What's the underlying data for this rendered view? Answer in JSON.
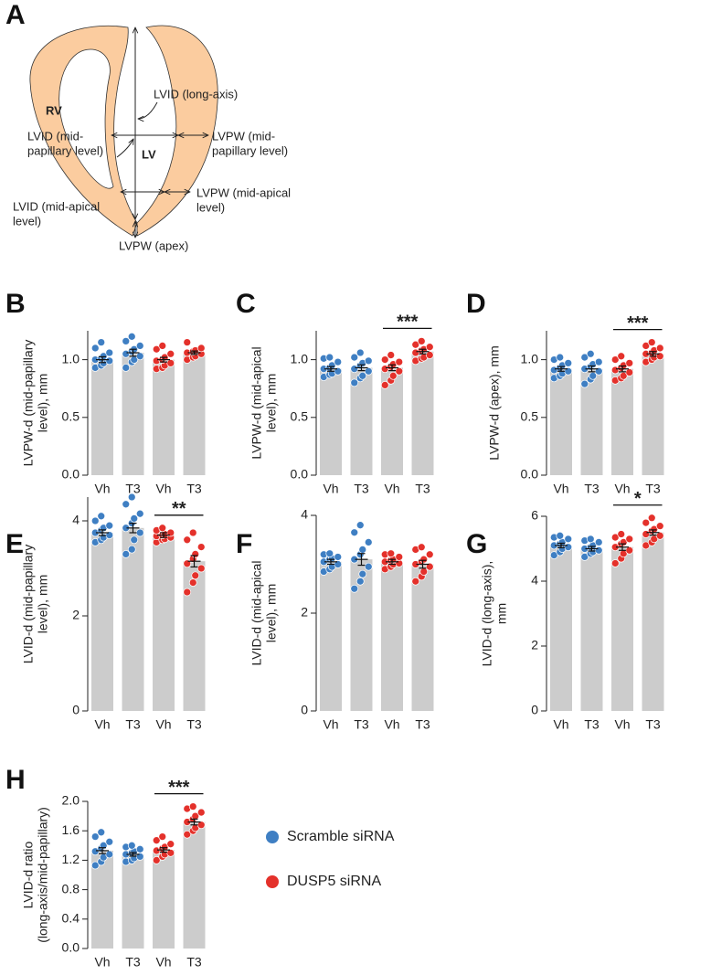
{
  "diagram": {
    "label": "A",
    "rv": "RV",
    "lv": "LV",
    "texts": [
      {
        "lines": [
          "LVID (long-axis)"
        ]
      },
      {
        "lines": [
          "LVID (mid-",
          "papillary level)"
        ]
      },
      {
        "lines": [
          "LVPW (mid-",
          "papillary level)"
        ]
      },
      {
        "lines": [
          "LVPW (mid-apical",
          "level)"
        ]
      },
      {
        "lines": [
          "LVID (mid-apical",
          "level)"
        ]
      },
      {
        "lines": [
          "LVPW (apex)"
        ]
      }
    ]
  },
  "legend": [
    {
      "name": "Scramble siRNA",
      "color": "#3f7fc3"
    },
    {
      "name": "DUSP5 siRNA",
      "color": "#e4312b"
    }
  ],
  "chart_data": [
    {
      "type": "bar",
      "label": "B",
      "ylabel": [
        "LVPW-d (mid-papillary",
        "level), mm"
      ],
      "categories": [
        "Vh",
        "T3",
        "Vh",
        "T3"
      ],
      "values": [
        1.0,
        1.06,
        1.0,
        1.06
      ],
      "errors": [
        0.025,
        0.03,
        0.02,
        0.015
      ],
      "points": [
        [
          0.93,
          0.95,
          0.97,
          0.99,
          1.0,
          1.01,
          1.03,
          1.06,
          1.1,
          1.15
        ],
        [
          0.93,
          0.98,
          1.0,
          1.03,
          1.05,
          1.07,
          1.09,
          1.12,
          1.16,
          1.2
        ],
        [
          0.92,
          0.93,
          0.95,
          0.97,
          0.99,
          1.0,
          1.02,
          1.05,
          1.09,
          1.12
        ],
        [
          1.0,
          1.02,
          1.03,
          1.05,
          1.06,
          1.07,
          1.08,
          1.1,
          1.15
        ]
      ],
      "colors": [
        "#3f7fc3",
        "#3f7fc3",
        "#e4312b",
        "#e4312b"
      ],
      "bar_color": "#cccccc",
      "ylim": [
        0,
        1.25
      ],
      "yticks": [
        {
          "value": 0,
          "label": "0.0"
        },
        0.5,
        {
          "value": 1,
          "label": "1.0"
        }
      ]
    },
    {
      "type": "bar",
      "label": "C",
      "ylabel": [
        "LVPW-d (mid-apical",
        "level), mm"
      ],
      "annotation": "***",
      "categories": [
        "Vh",
        "T3",
        "Vh",
        "T3"
      ],
      "values": [
        0.92,
        0.93,
        0.93,
        1.07
      ],
      "errors": [
        0.02,
        0.025,
        0.025,
        0.02
      ],
      "points": [
        [
          0.85,
          0.87,
          0.88,
          0.9,
          0.92,
          0.93,
          0.95,
          0.98,
          1.01,
          1.02
        ],
        [
          0.8,
          0.84,
          0.86,
          0.9,
          0.92,
          0.95,
          0.97,
          0.99,
          1.02,
          1.06
        ],
        [
          0.78,
          0.82,
          0.86,
          0.9,
          0.92,
          0.94,
          0.96,
          0.98,
          1.0,
          1.04
        ],
        [
          0.99,
          1.01,
          1.02,
          1.04,
          1.06,
          1.08,
          1.09,
          1.11,
          1.13,
          1.16
        ]
      ],
      "colors": [
        "#3f7fc3",
        "#3f7fc3",
        "#e4312b",
        "#e4312b"
      ],
      "bar_color": "#cccccc",
      "ylim": [
        0,
        1.25
      ],
      "yticks": [
        {
          "value": 0,
          "label": "0.0"
        },
        0.5,
        {
          "value": 1,
          "label": "1.0"
        }
      ]
    },
    {
      "type": "bar",
      "label": "D",
      "ylabel": [
        "LVPW-d (apex), mm"
      ],
      "annotation": "***",
      "categories": [
        "Vh",
        "T3",
        "Vh",
        "T3"
      ],
      "values": [
        0.92,
        0.92,
        0.92,
        1.05
      ],
      "errors": [
        0.02,
        0.025,
        0.025,
        0.02
      ],
      "points": [
        [
          0.84,
          0.86,
          0.88,
          0.9,
          0.91,
          0.93,
          0.95,
          0.97,
          1.0,
          1.02
        ],
        [
          0.79,
          0.83,
          0.86,
          0.9,
          0.92,
          0.94,
          0.96,
          0.98,
          1.02,
          1.05
        ],
        [
          0.82,
          0.84,
          0.86,
          0.89,
          0.91,
          0.93,
          0.95,
          0.97,
          1.0,
          1.03
        ],
        [
          0.98,
          1.0,
          1.02,
          1.03,
          1.05,
          1.06,
          1.08,
          1.1,
          1.12,
          1.15
        ]
      ],
      "colors": [
        "#3f7fc3",
        "#3f7fc3",
        "#e4312b",
        "#e4312b"
      ],
      "bar_color": "#cccccc",
      "ylim": [
        0,
        1.25
      ],
      "yticks": [
        {
          "value": 0,
          "label": "0.0"
        },
        0.5,
        {
          "value": 1,
          "label": "1.0"
        }
      ]
    },
    {
      "type": "bar",
      "label": "E",
      "ylabel": [
        "LVID-d (mid-papillary",
        "level), mm"
      ],
      "annotation": "**",
      "categories": [
        "Vh",
        "T3",
        "Vh",
        "T3"
      ],
      "values": [
        3.75,
        3.85,
        3.7,
        3.15
      ],
      "errors": [
        0.06,
        0.1,
        0.05,
        0.12
      ],
      "points": [
        [
          3.55,
          3.6,
          3.65,
          3.7,
          3.75,
          3.8,
          3.85,
          3.9,
          4.0,
          4.1
        ],
        [
          3.3,
          3.4,
          3.6,
          3.75,
          3.85,
          3.95,
          4.05,
          4.15,
          4.35,
          4.5
        ],
        [
          3.55,
          3.6,
          3.62,
          3.65,
          3.68,
          3.7,
          3.72,
          3.75,
          3.8,
          3.85
        ],
        [
          2.5,
          2.7,
          2.85,
          3.0,
          3.1,
          3.2,
          3.3,
          3.45,
          3.6,
          3.75
        ]
      ],
      "colors": [
        "#3f7fc3",
        "#3f7fc3",
        "#e4312b",
        "#e4312b"
      ],
      "bar_color": "#cccccc",
      "ylim": [
        0,
        4.5
      ],
      "yticks": [
        0,
        2,
        4
      ]
    },
    {
      "type": "bar",
      "label": "F",
      "ylabel": [
        "LVID-d (mid-apical",
        "level), mm"
      ],
      "categories": [
        "Vh",
        "T3",
        "Vh",
        "T3"
      ],
      "values": [
        3.05,
        3.1,
        3.05,
        3.0
      ],
      "errors": [
        0.05,
        0.12,
        0.05,
        0.08
      ],
      "points": [
        [
          2.85,
          2.9,
          2.95,
          3.0,
          3.05,
          3.1,
          3.12,
          3.15,
          3.2,
          3.22
        ],
        [
          2.5,
          2.65,
          2.8,
          2.95,
          3.1,
          3.2,
          3.3,
          3.45,
          3.65,
          3.8
        ],
        [
          2.9,
          2.95,
          3.0,
          3.02,
          3.05,
          3.08,
          3.1,
          3.15,
          3.2,
          3.22
        ],
        [
          2.65,
          2.75,
          2.85,
          2.95,
          3.0,
          3.05,
          3.1,
          3.2,
          3.3,
          3.35
        ]
      ],
      "colors": [
        "#3f7fc3",
        "#3f7fc3",
        "#e4312b",
        "#e4312b"
      ],
      "bar_color": "#cccccc",
      "ylim": [
        0,
        4
      ],
      "yticks": [
        0,
        2,
        4
      ]
    },
    {
      "type": "bar",
      "label": "G",
      "ylabel": [
        "LVID-d (long-axis),",
        "mm"
      ],
      "annotation": "*",
      "categories": [
        "Vh",
        "T3",
        "Vh",
        "T3"
      ],
      "values": [
        5.1,
        5.0,
        5.05,
        5.5
      ],
      "errors": [
        0.07,
        0.07,
        0.1,
        0.08
      ],
      "points": [
        [
          4.8,
          4.9,
          5.0,
          5.05,
          5.1,
          5.15,
          5.2,
          5.3,
          5.35,
          5.4
        ],
        [
          4.75,
          4.85,
          4.9,
          4.95,
          5.0,
          5.05,
          5.1,
          5.2,
          5.25,
          5.3
        ],
        [
          4.55,
          4.7,
          4.85,
          4.95,
          5.05,
          5.15,
          5.2,
          5.3,
          5.35,
          5.45
        ],
        [
          5.1,
          5.2,
          5.3,
          5.4,
          5.45,
          5.55,
          5.6,
          5.7,
          5.8,
          5.95
        ]
      ],
      "colors": [
        "#3f7fc3",
        "#3f7fc3",
        "#e4312b",
        "#e4312b"
      ],
      "bar_color": "#cccccc",
      "ylim": [
        0,
        6
      ],
      "yticks": [
        0,
        2,
        4,
        6
      ]
    },
    {
      "type": "bar",
      "label": "H",
      "ylabel": [
        "LVID-d ratio",
        "(long-axis/mid-papillary)"
      ],
      "annotation": "***",
      "categories": [
        "Vh",
        "T3",
        "Vh",
        "T3"
      ],
      "values": [
        1.33,
        1.28,
        1.34,
        1.72
      ],
      "errors": [
        0.04,
        0.025,
        0.03,
        0.04
      ],
      "points": [
        [
          1.13,
          1.18,
          1.24,
          1.28,
          1.32,
          1.36,
          1.4,
          1.45,
          1.52,
          1.58
        ],
        [
          1.18,
          1.2,
          1.23,
          1.25,
          1.28,
          1.3,
          1.32,
          1.35,
          1.38,
          1.4
        ],
        [
          1.2,
          1.25,
          1.28,
          1.3,
          1.33,
          1.36,
          1.38,
          1.42,
          1.47,
          1.52
        ],
        [
          1.55,
          1.6,
          1.64,
          1.68,
          1.72,
          1.76,
          1.8,
          1.85,
          1.9,
          1.93
        ]
      ],
      "colors": [
        "#3f7fc3",
        "#3f7fc3",
        "#e4312b",
        "#e4312b"
      ],
      "bar_color": "#cccccc",
      "ylim": [
        0,
        2
      ],
      "yticks": [
        {
          "value": 0,
          "label": "0.0"
        },
        0.4,
        0.8,
        1.2,
        1.6,
        {
          "value": 2,
          "label": "2.0"
        }
      ]
    }
  ]
}
